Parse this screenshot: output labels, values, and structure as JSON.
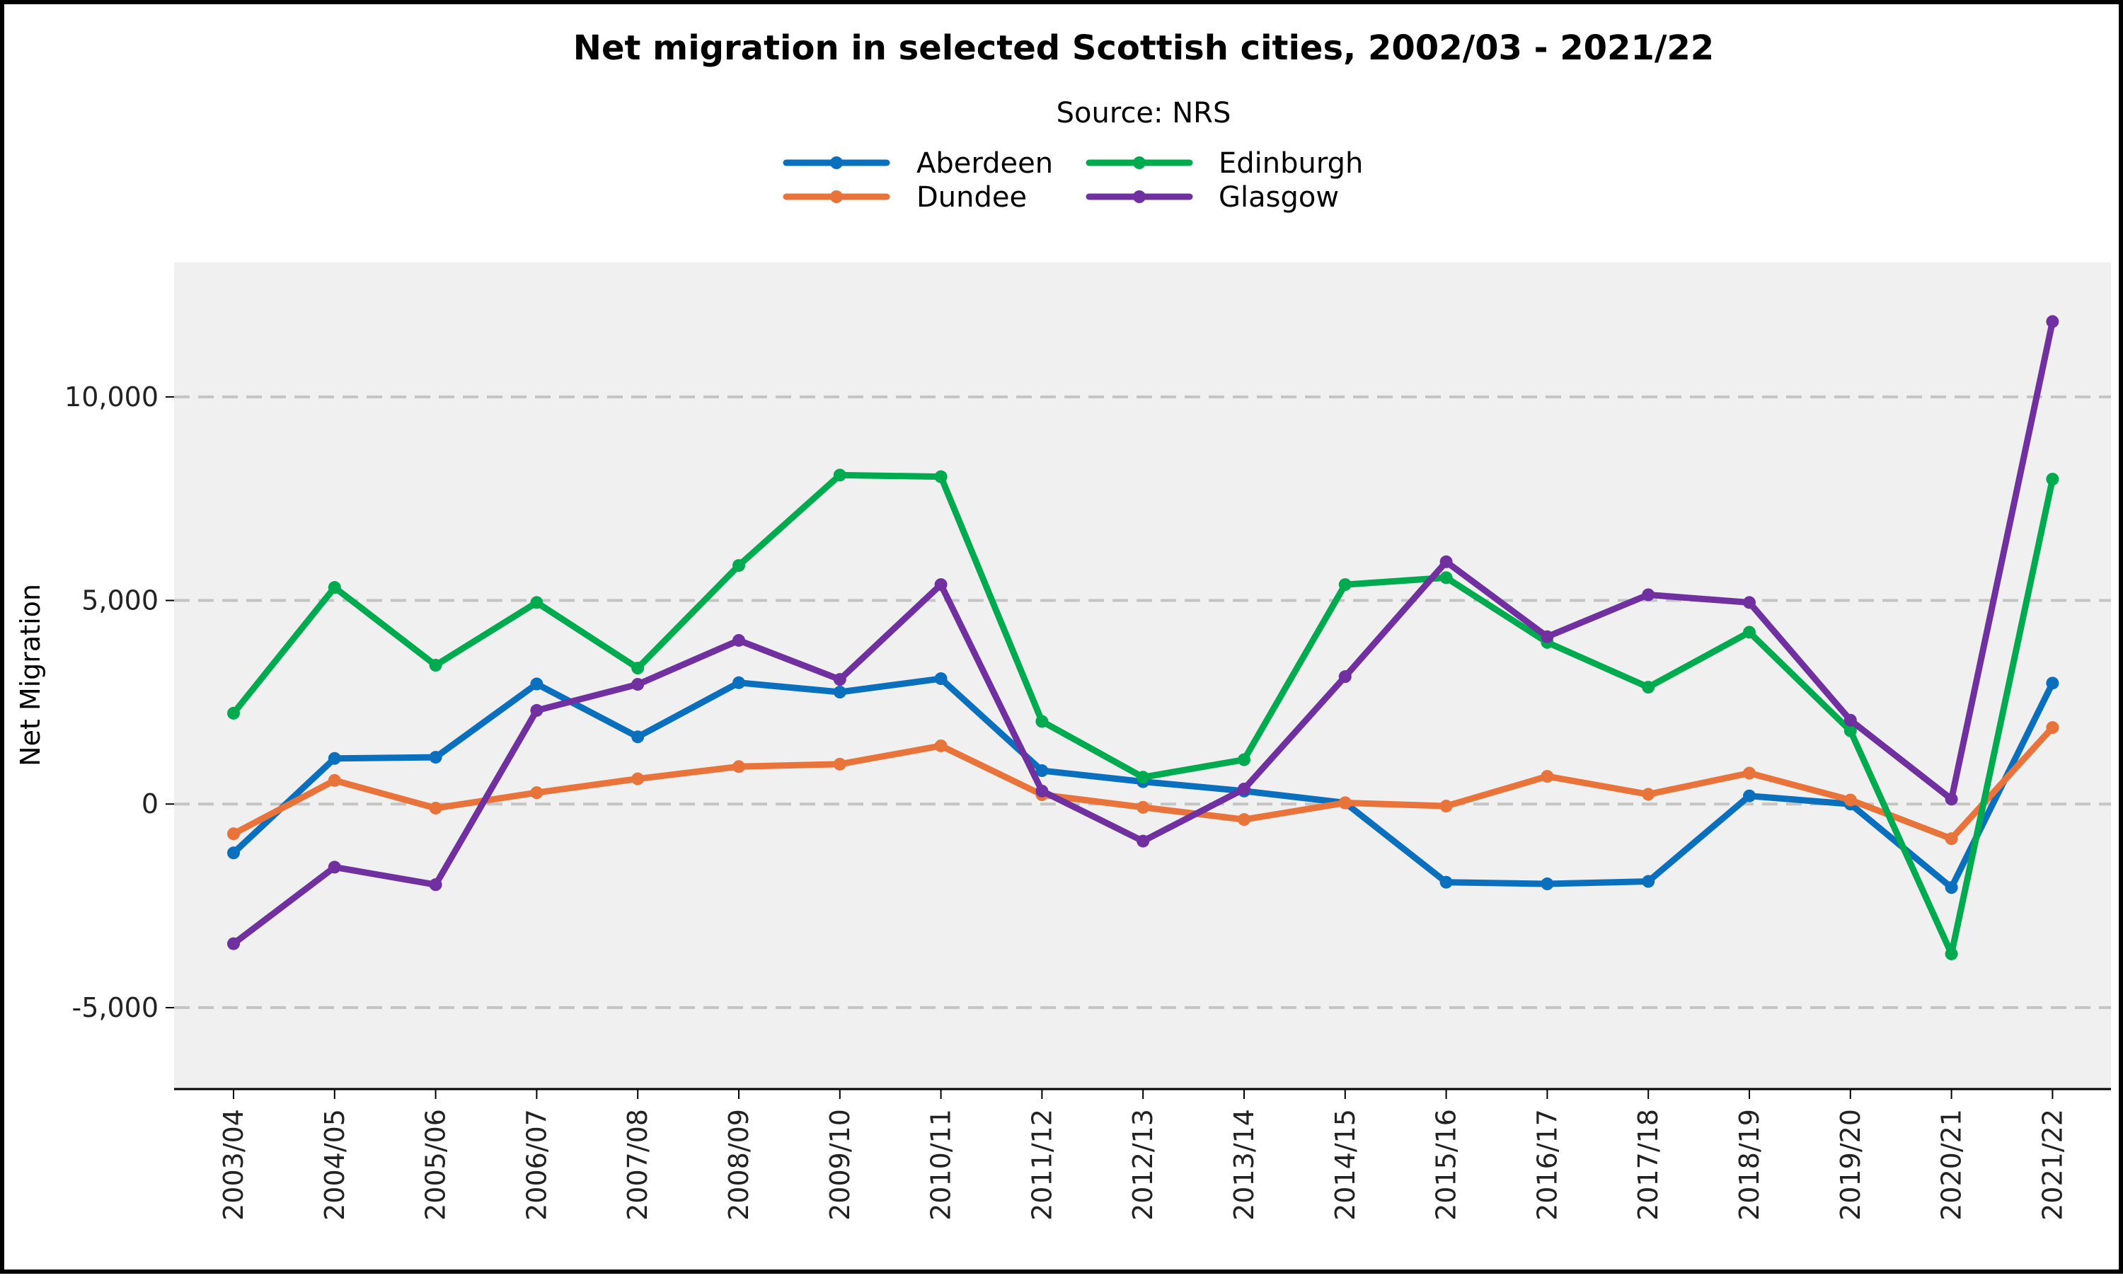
{
  "chart_data": {
    "type": "line",
    "title": "Net migration in selected Scottish cities, 2002/03 - 2021/22",
    "subtitle": "Source: NRS",
    "xlabel": "",
    "ylabel": "Net Migration",
    "categories": [
      "2003/04",
      "2004/05",
      "2005/06",
      "2006/07",
      "2007/08",
      "2008/09",
      "2009/10",
      "2010/11",
      "2011/12",
      "2012/13",
      "2013/14",
      "2014/15",
      "2015/16",
      "2016/17",
      "2017/18",
      "2018/19",
      "2019/20",
      "2020/21",
      "2021/22"
    ],
    "yticks": [
      -5000,
      0,
      5000,
      10000
    ],
    "ytick_labels": [
      "-5,000",
      "0",
      "5,000",
      "10,000"
    ],
    "ylim": [
      -7000,
      13300
    ],
    "grid": "horizontal dashed",
    "legend_position": "top-center",
    "series": [
      {
        "name": "Aberdeen",
        "color": "#0a6fbd",
        "values": [
          -1200,
          1120,
          1150,
          2950,
          1650,
          2980,
          2750,
          3080,
          820,
          550,
          320,
          30,
          -1920,
          -1960,
          -1900,
          200,
          0,
          -2050,
          2970
        ]
      },
      {
        "name": "Dundee",
        "color": "#e8743b",
        "values": [
          -730,
          580,
          -100,
          280,
          620,
          920,
          980,
          1430,
          230,
          -80,
          -380,
          30,
          -50,
          680,
          240,
          760,
          100,
          -850,
          1880
        ]
      },
      {
        "name": "Edinburgh",
        "color": "#00aa4f",
        "values": [
          2230,
          5320,
          3410,
          4950,
          3340,
          5860,
          8080,
          8040,
          2030,
          660,
          1090,
          5390,
          5560,
          3970,
          2870,
          4220,
          1800,
          -3680,
          7980
        ]
      },
      {
        "name": "Glasgow",
        "color": "#7030a0",
        "values": [
          -3430,
          -1550,
          -1980,
          2300,
          2940,
          4020,
          3060,
          5390,
          320,
          -910,
          370,
          3130,
          5950,
          4110,
          5140,
          4950,
          2060,
          120,
          11850
        ]
      }
    ]
  }
}
